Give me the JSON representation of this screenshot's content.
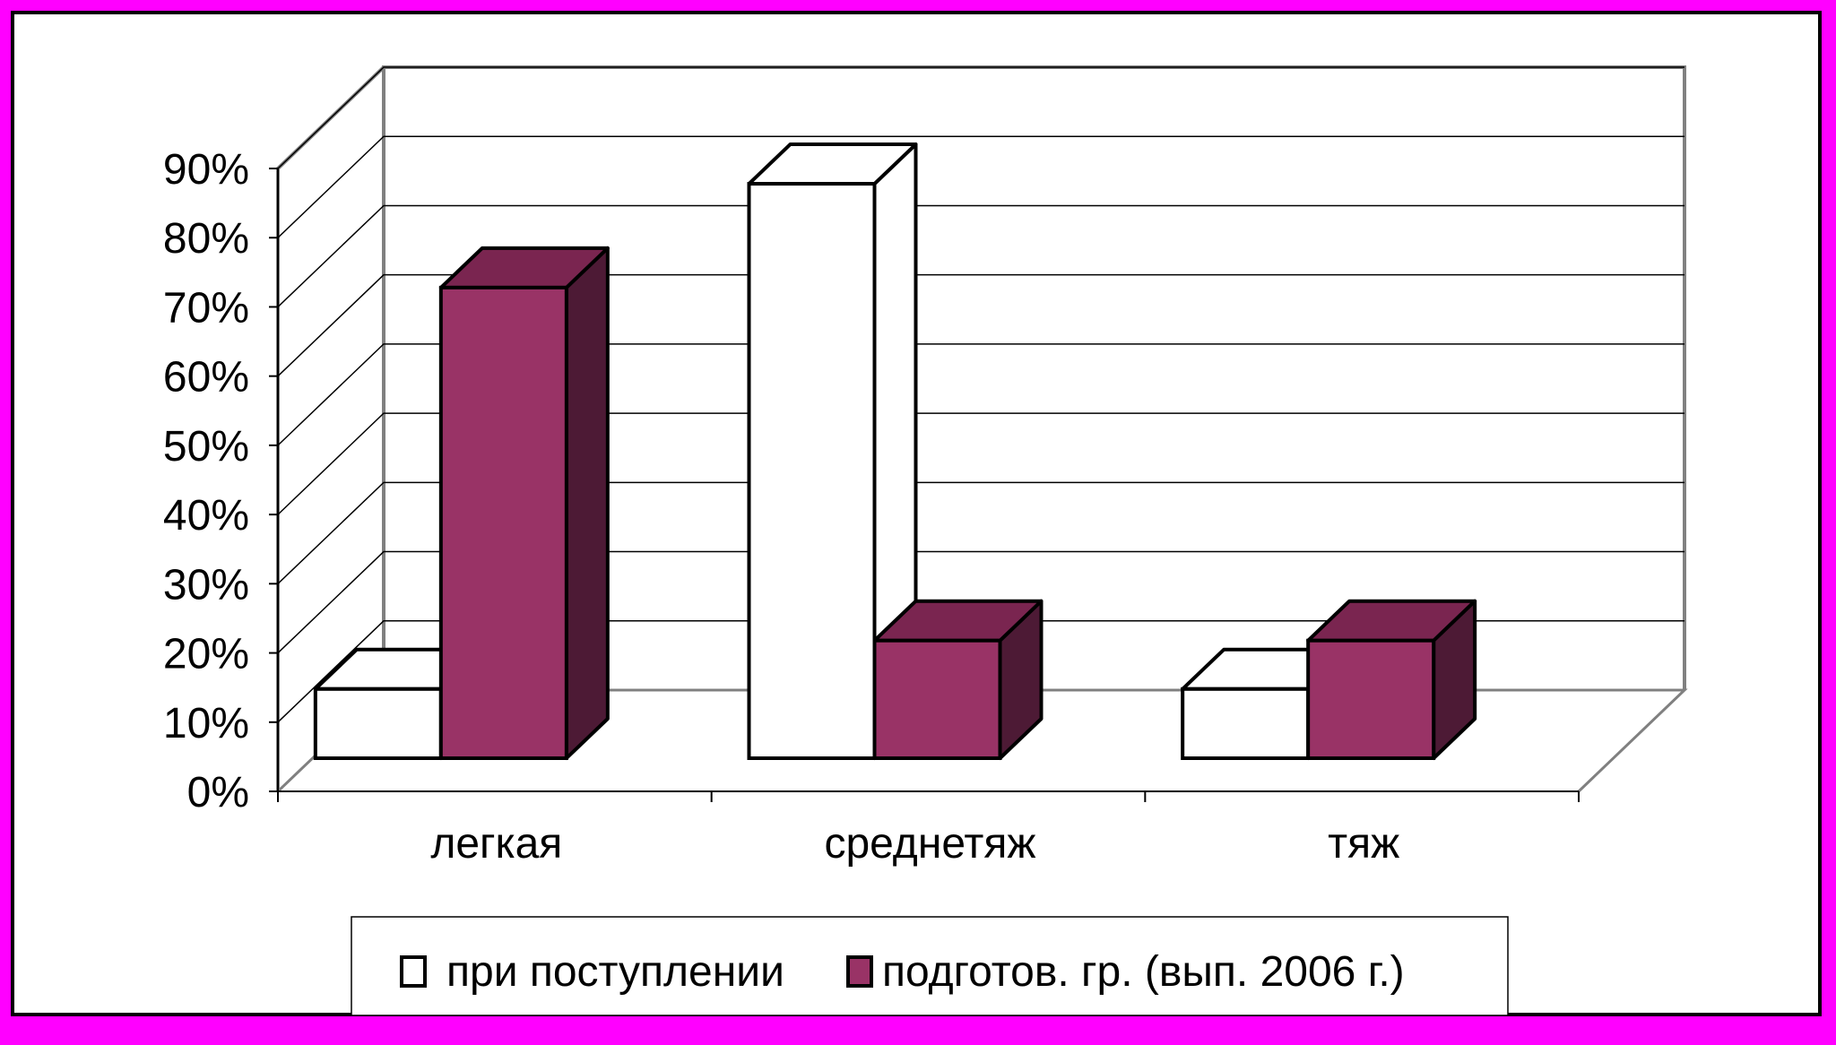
{
  "chart_data": {
    "type": "bar",
    "style": "3d-clustered-column",
    "categories": [
      "легкая",
      "среднетяж",
      "тяж"
    ],
    "series": [
      {
        "name": "при поступлении",
        "color": "#ffffff",
        "values": [
          10,
          83,
          10
        ]
      },
      {
        "name": "подготов. гр. (вып. 2006 г.)",
        "color": "#993366",
        "values": [
          68,
          17,
          17
        ]
      }
    ],
    "yticks": [
      "0%",
      "10%",
      "20%",
      "30%",
      "40%",
      "50%",
      "60%",
      "70%",
      "80%",
      "90%"
    ],
    "ylim": [
      0,
      90
    ],
    "grid": true,
    "legend_position": "bottom",
    "colors": {
      "page_border": "#ff00ff",
      "series1_face": "#ffffff",
      "series2_face": "#993366",
      "series2_top": "#7a2550",
      "series2_side": "#4d1a35"
    }
  }
}
